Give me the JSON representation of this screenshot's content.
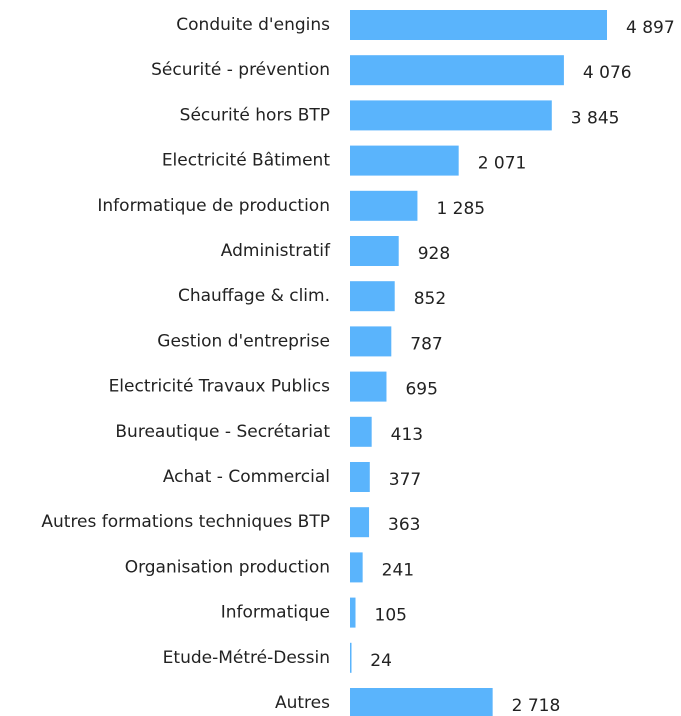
{
  "chart_data": {
    "type": "barh",
    "categories": [
      "Conduite d'engins",
      "Sécurité - prévention",
      "Sécurité hors BTP",
      "Electricité Bâtiment",
      "Informatique de production",
      "Administratif",
      "Chauffage & clim.",
      "Gestion d'entreprise",
      "Electricité Travaux Publics",
      "Bureautique - Secrétariat",
      "Achat - Commercial",
      "Autres formations techniques BTP",
      "Organisation production",
      "Informatique",
      "Etude-Métré-Dessin",
      "Autres"
    ],
    "values": [
      4897,
      4076,
      3845,
      2071,
      1285,
      928,
      852,
      787,
      695,
      413,
      377,
      363,
      241,
      105,
      24,
      2718
    ],
    "value_labels": [
      "4 897",
      "4 076",
      "3 845",
      "2 071",
      "1 285",
      "928",
      "852",
      "787",
      "695",
      "413",
      "377",
      "363",
      "241",
      "105",
      "24",
      "2 718"
    ],
    "color": "#5ab4fc"
  }
}
